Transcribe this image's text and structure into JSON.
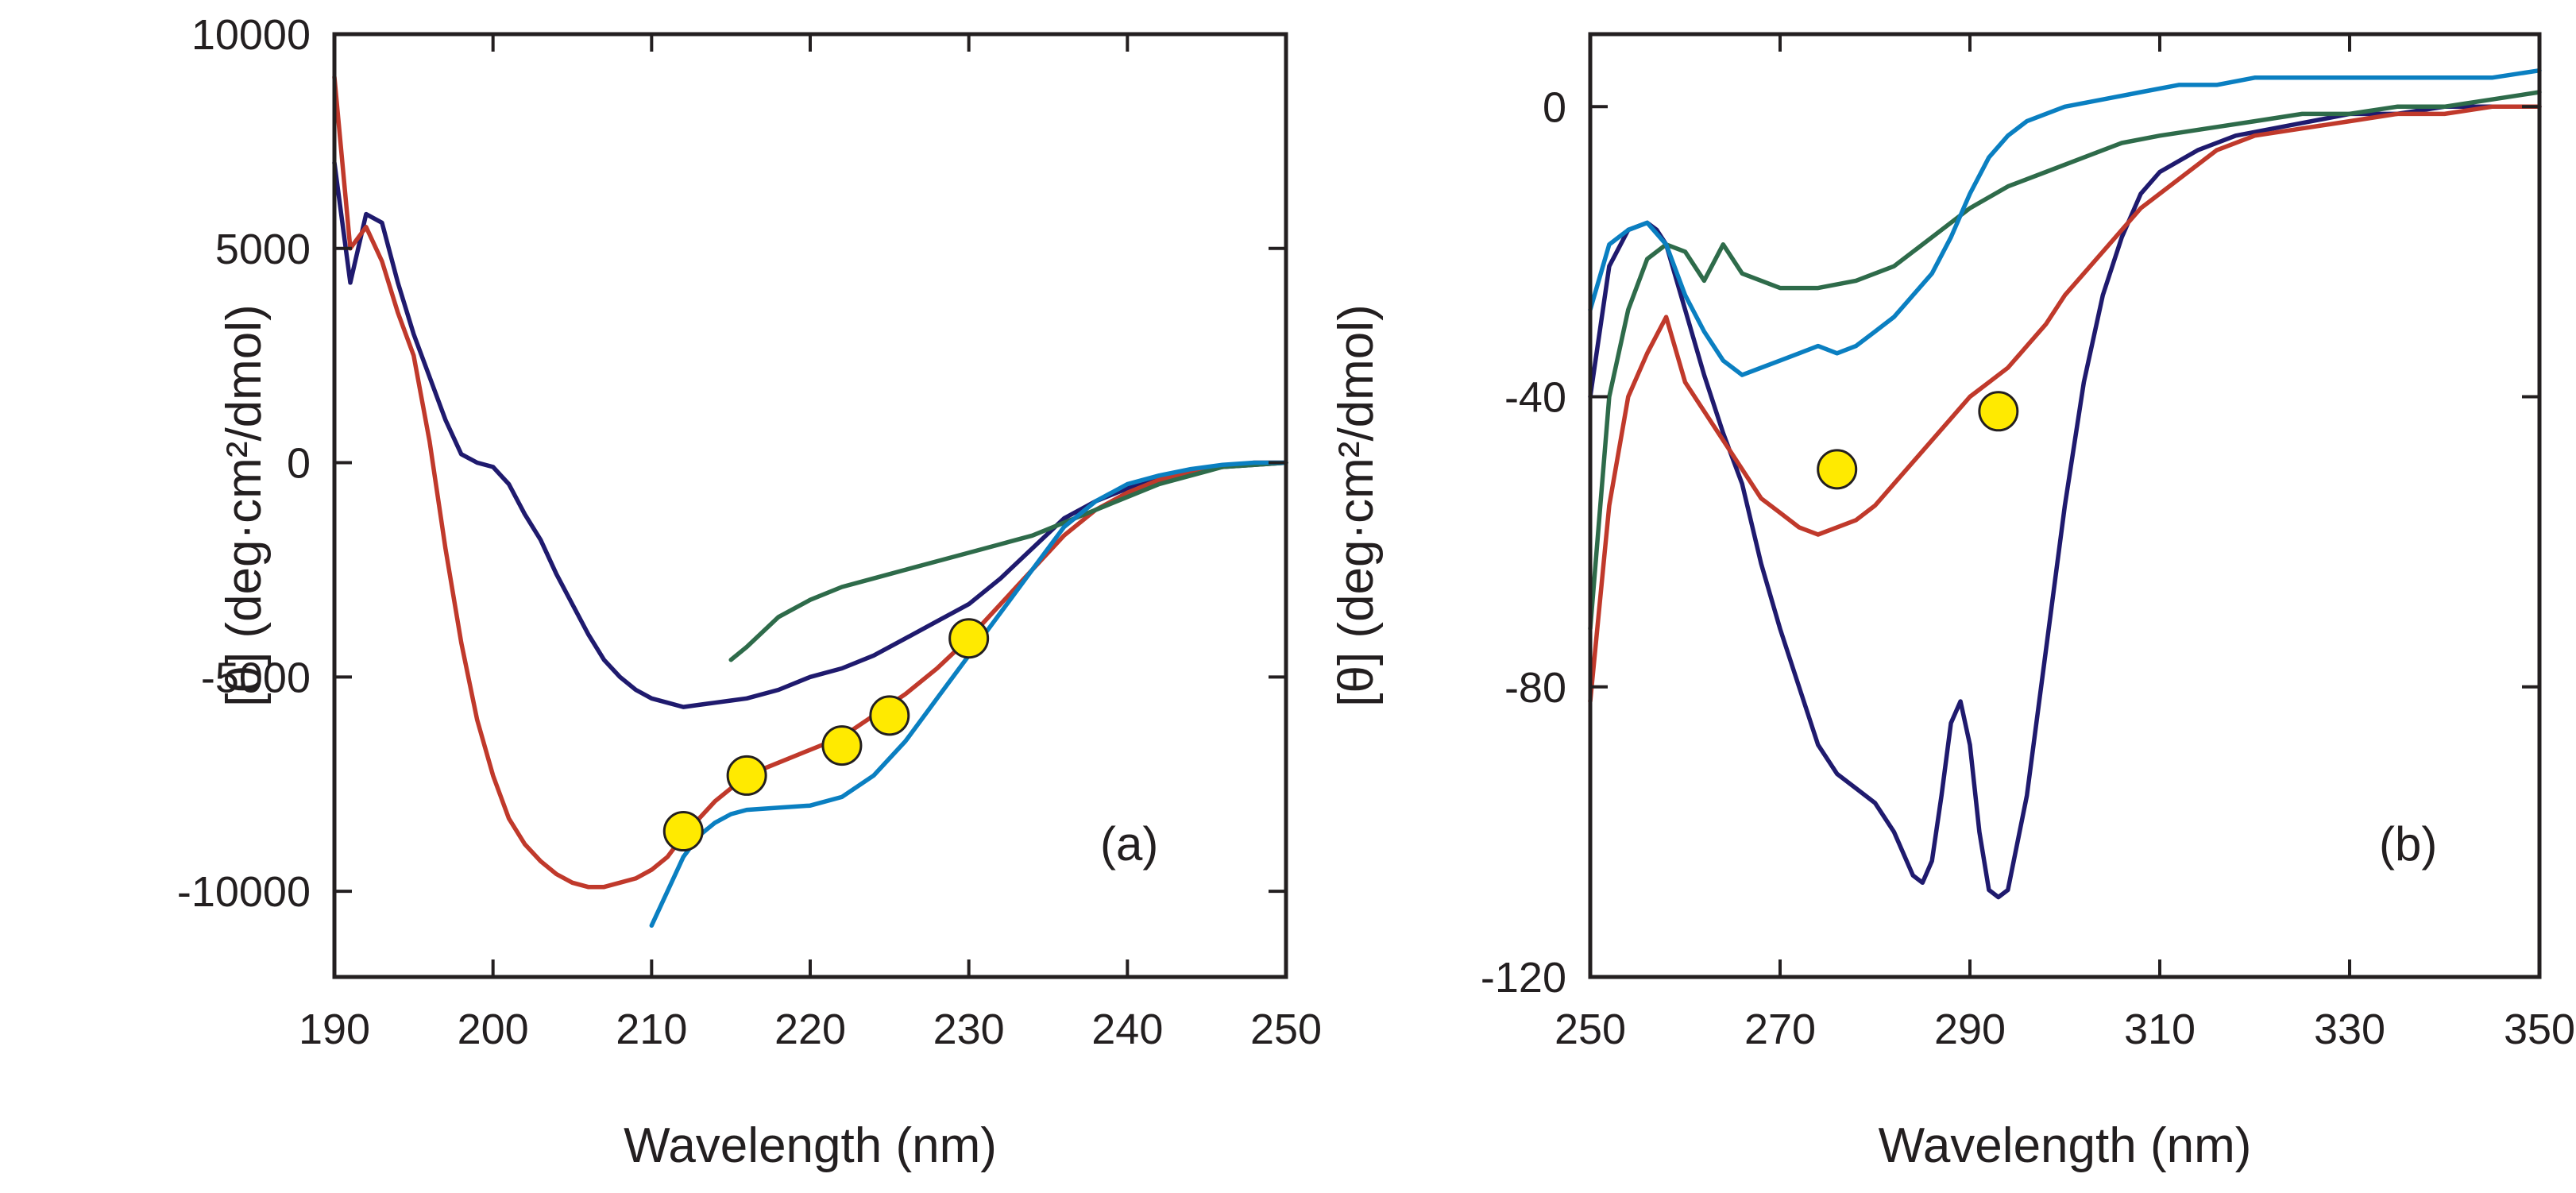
{
  "colors": {
    "navy": "#1f1a6e",
    "red": "#c0392b",
    "green": "#2e6b4a",
    "blue": "#0a7fc1",
    "marker_fill": "#ffea00",
    "axis": "#231f20"
  },
  "chart_data": [
    {
      "id": "a",
      "type": "line",
      "panel_label": "(a)",
      "legend_position": "none",
      "grid": false,
      "xlabel": "Wavelength (nm)",
      "ylabel": "[θ] (deg·cm²/dmol)",
      "xlim": [
        190,
        250
      ],
      "ylim": [
        -12000,
        10000
      ],
      "xticks": [
        190,
        200,
        210,
        220,
        230,
        240,
        250
      ],
      "xtick_labels": [
        "190",
        "200",
        "210",
        "220",
        "230",
        "240",
        "250"
      ],
      "yticks": [
        -10000,
        -5000,
        0,
        5000,
        10000
      ],
      "ytick_labels": [
        "-10000",
        "-5000",
        "0",
        "5000",
        "10000"
      ],
      "series": [
        {
          "name": "navy",
          "color": "#1f1a6e",
          "x": [
            190,
            191,
            192,
            193,
            194,
            195,
            196,
            197,
            198,
            199,
            200,
            201,
            202,
            203,
            204,
            205,
            206,
            207,
            208,
            209,
            210,
            211,
            212,
            213,
            214,
            215,
            216,
            218,
            220,
            222,
            224,
            226,
            228,
            230,
            232,
            234,
            236,
            238,
            240,
            242,
            244,
            246,
            248,
            250
          ],
          "y": [
            7000,
            4200,
            5800,
            5600,
            4200,
            3000,
            2000,
            1000,
            200,
            0,
            -100,
            -500,
            -1200,
            -1800,
            -2600,
            -3300,
            -4000,
            -4600,
            -5000,
            -5300,
            -5500,
            -5600,
            -5700,
            -5650,
            -5600,
            -5550,
            -5500,
            -5300,
            -5000,
            -4800,
            -4500,
            -4100,
            -3700,
            -3300,
            -2700,
            -2000,
            -1300,
            -900,
            -600,
            -400,
            -200,
            -100,
            -50,
            0
          ]
        },
        {
          "name": "red",
          "color": "#c0392b",
          "x": [
            190,
            191,
            192,
            193,
            194,
            195,
            196,
            197,
            198,
            199,
            200,
            201,
            202,
            203,
            204,
            205,
            206,
            207,
            208,
            209,
            210,
            211,
            212,
            214,
            216,
            218,
            220,
            222,
            224,
            226,
            228,
            230,
            232,
            234,
            236,
            238,
            240,
            242,
            244,
            246,
            248,
            250
          ],
          "y": [
            9000,
            5000,
            5500,
            4700,
            3500,
            2500,
            500,
            -2000,
            -4200,
            -6000,
            -7300,
            -8300,
            -8900,
            -9300,
            -9600,
            -9800,
            -9900,
            -9900,
            -9800,
            -9700,
            -9500,
            -9200,
            -8700,
            -7900,
            -7300,
            -7000,
            -6700,
            -6400,
            -5900,
            -5400,
            -4800,
            -4100,
            -3300,
            -2500,
            -1700,
            -1100,
            -700,
            -400,
            -200,
            -100,
            0,
            0
          ]
        },
        {
          "name": "green",
          "color": "#2e6b4a",
          "x": [
            215,
            216,
            218,
            220,
            222,
            224,
            226,
            228,
            230,
            232,
            234,
            236,
            238,
            240,
            242,
            244,
            246,
            248,
            250
          ],
          "y": [
            -4600,
            -4300,
            -3600,
            -3200,
            -2900,
            -2700,
            -2500,
            -2300,
            -2100,
            -1900,
            -1700,
            -1400,
            -1100,
            -800,
            -500,
            -300,
            -100,
            -50,
            0
          ]
        },
        {
          "name": "blue",
          "color": "#0a7fc1",
          "x": [
            210,
            211,
            212,
            213,
            214,
            215,
            216,
            218,
            220,
            222,
            224,
            226,
            228,
            230,
            232,
            234,
            236,
            238,
            240,
            242,
            244,
            246,
            248,
            250
          ],
          "y": [
            -10800,
            -10000,
            -9200,
            -8700,
            -8400,
            -8200,
            -8100,
            -8050,
            -8000,
            -7800,
            -7300,
            -6500,
            -5500,
            -4500,
            -3500,
            -2500,
            -1500,
            -900,
            -500,
            -300,
            -150,
            -50,
            0,
            0
          ]
        }
      ],
      "markers": {
        "color": "#ffea00",
        "x": [
          212,
          216,
          222,
          225,
          230
        ],
        "y": [
          -8600,
          -7300,
          -6600,
          -5900,
          -4100
        ]
      }
    },
    {
      "id": "b",
      "type": "line",
      "panel_label": "(b)",
      "legend_position": "none",
      "grid": false,
      "xlabel": "Wavelength (nm)",
      "ylabel": "[θ] (deg·cm²/dmol)",
      "xlim": [
        250,
        350
      ],
      "ylim": [
        -120,
        10
      ],
      "xticks": [
        250,
        270,
        290,
        310,
        330,
        350
      ],
      "xtick_labels": [
        "250",
        "270",
        "290",
        "310",
        "330",
        "350"
      ],
      "yticks": [
        -120,
        -80,
        -40,
        0
      ],
      "ytick_labels": [
        "-120",
        "-80",
        "-40",
        "0"
      ],
      "series": [
        {
          "name": "navy",
          "color": "#1f1a6e",
          "x": [
            250,
            252,
            254,
            256,
            257,
            258,
            260,
            262,
            264,
            266,
            268,
            270,
            272,
            274,
            276,
            278,
            280,
            282,
            284,
            285,
            286,
            287,
            288,
            289,
            290,
            291,
            292,
            293,
            294,
            296,
            298,
            300,
            302,
            304,
            306,
            308,
            310,
            314,
            318,
            322,
            326,
            330,
            335,
            340,
            345,
            350
          ],
          "y": [
            -40,
            -22,
            -17,
            -16,
            -17,
            -19,
            -28,
            -37,
            -45,
            -52,
            -63,
            -72,
            -80,
            -88,
            -92,
            -94,
            -96,
            -100,
            -106,
            -107,
            -104,
            -95,
            -85,
            -82,
            -88,
            -100,
            -108,
            -109,
            -108,
            -95,
            -75,
            -55,
            -38,
            -26,
            -18,
            -12,
            -9,
            -6,
            -4,
            -3,
            -2,
            -1,
            -1,
            0,
            0,
            0
          ]
        },
        {
          "name": "red",
          "color": "#c0392b",
          "x": [
            250,
            252,
            254,
            256,
            258,
            260,
            262,
            264,
            266,
            268,
            270,
            272,
            274,
            276,
            278,
            280,
            282,
            284,
            286,
            288,
            290,
            292,
            294,
            296,
            298,
            300,
            304,
            308,
            312,
            316,
            320,
            325,
            330,
            335,
            340,
            345,
            350
          ],
          "y": [
            -82,
            -55,
            -40,
            -34,
            -29,
            -38,
            -42,
            -46,
            -50,
            -54,
            -56,
            -58,
            -59,
            -58,
            -57,
            -55,
            -52,
            -49,
            -46,
            -43,
            -40,
            -38,
            -36,
            -33,
            -30,
            -26,
            -20,
            -14,
            -10,
            -6,
            -4,
            -3,
            -2,
            -1,
            -1,
            0,
            0
          ]
        },
        {
          "name": "green",
          "color": "#2e6b4a",
          "x": [
            250,
            252,
            254,
            256,
            258,
            260,
            262,
            264,
            266,
            268,
            270,
            274,
            278,
            282,
            286,
            290,
            294,
            298,
            302,
            306,
            310,
            315,
            320,
            325,
            330,
            335,
            340,
            345,
            350
          ],
          "y": [
            -72,
            -40,
            -28,
            -21,
            -19,
            -20,
            -24,
            -19,
            -23,
            -24,
            -25,
            -25,
            -24,
            -22,
            -18,
            -14,
            -11,
            -9,
            -7,
            -5,
            -4,
            -3,
            -2,
            -1,
            -1,
            0,
            0,
            1,
            2
          ]
        },
        {
          "name": "blue",
          "color": "#0a7fc1",
          "x": [
            250,
            252,
            254,
            256,
            258,
            260,
            262,
            264,
            266,
            268,
            270,
            272,
            274,
            276,
            278,
            280,
            282,
            284,
            286,
            288,
            290,
            292,
            294,
            296,
            300,
            304,
            308,
            312,
            316,
            320,
            325,
            330,
            335,
            340,
            345,
            350
          ],
          "y": [
            -28,
            -19,
            -17,
            -16,
            -19,
            -26,
            -31,
            -35,
            -37,
            -36,
            -35,
            -34,
            -33,
            -34,
            -33,
            -31,
            -29,
            -26,
            -23,
            -18,
            -12,
            -7,
            -4,
            -2,
            0,
            1,
            2,
            3,
            3,
            4,
            4,
            4,
            4,
            4,
            4,
            5
          ]
        }
      ],
      "markers": {
        "color": "#ffea00",
        "x": [
          276,
          293
        ],
        "y": [
          -50,
          -42
        ]
      }
    }
  ]
}
